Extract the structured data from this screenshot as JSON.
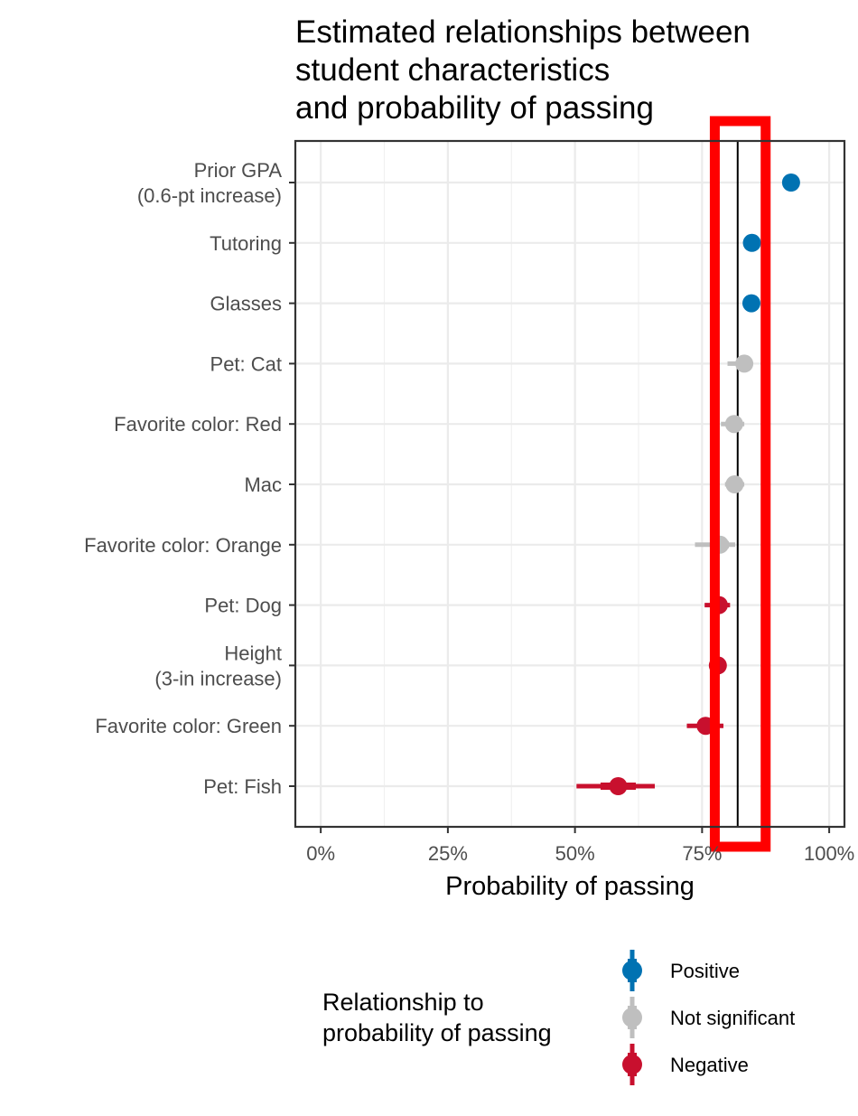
{
  "chart_data": {
    "type": "scatter",
    "title_lines": [
      "Estimated relationships between",
      "student characteristics",
      "and probability of passing"
    ],
    "xlabel": "Probability of passing",
    "ylabel": "",
    "xlim": [
      -0.05,
      1.03
    ],
    "x_ticks": [
      0,
      0.25,
      0.5,
      0.75,
      1.0
    ],
    "x_tick_labels": [
      "0%",
      "25%",
      "50%",
      "75%",
      "100%"
    ],
    "grid": true,
    "baseline": 0.82,
    "highlight_box": {
      "xmin": 0.775,
      "xmax": 0.875,
      "color": "#ff0000"
    },
    "categories": [
      {
        "lines": [
          "Prior GPA",
          "(0.6-pt increase)"
        ],
        "estimate": 0.925,
        "lo": 0.925,
        "hi": 0.925,
        "group": "Positive"
      },
      {
        "lines": [
          "Tutoring"
        ],
        "estimate": 0.848,
        "lo": 0.843,
        "hi": 0.853,
        "group": "Positive"
      },
      {
        "lines": [
          "Glasses"
        ],
        "estimate": 0.847,
        "lo": 0.842,
        "hi": 0.852,
        "group": "Positive"
      },
      {
        "lines": [
          "Pet: Cat"
        ],
        "estimate": 0.833,
        "lo": 0.8,
        "hi": 0.848,
        "group": "Not significant"
      },
      {
        "lines": [
          "Favorite color: Red"
        ],
        "estimate": 0.813,
        "lo": 0.787,
        "hi": 0.833,
        "group": "Not significant"
      },
      {
        "lines": [
          "Mac"
        ],
        "estimate": 0.814,
        "lo": 0.795,
        "hi": 0.833,
        "group": "Not significant"
      },
      {
        "lines": [
          "Favorite color: Orange"
        ],
        "estimate": 0.785,
        "lo": 0.736,
        "hi": 0.815,
        "group": "Not significant"
      },
      {
        "lines": [
          "Pet: Dog"
        ],
        "estimate": 0.783,
        "lo": 0.755,
        "hi": 0.805,
        "group": "Negative"
      },
      {
        "lines": [
          "Height",
          "(3-in increase)"
        ],
        "estimate": 0.781,
        "lo": 0.776,
        "hi": 0.786,
        "group": "Negative"
      },
      {
        "lines": [
          "Favorite color: Green"
        ],
        "estimate": 0.757,
        "lo": 0.72,
        "hi": 0.792,
        "group": "Negative"
      },
      {
        "lines": [
          "Pet: Fish"
        ],
        "estimate": 0.585,
        "lo": 0.503,
        "hi": 0.657,
        "group": "Negative"
      }
    ],
    "legend": {
      "title_lines": [
        "Relationship to",
        "probability of passing"
      ],
      "entries": [
        {
          "label": "Positive",
          "color": "#0072b2"
        },
        {
          "label": "Not significant",
          "color": "#bfbfbf"
        },
        {
          "label": "Negative",
          "color": "#c8102e"
        }
      ]
    }
  }
}
